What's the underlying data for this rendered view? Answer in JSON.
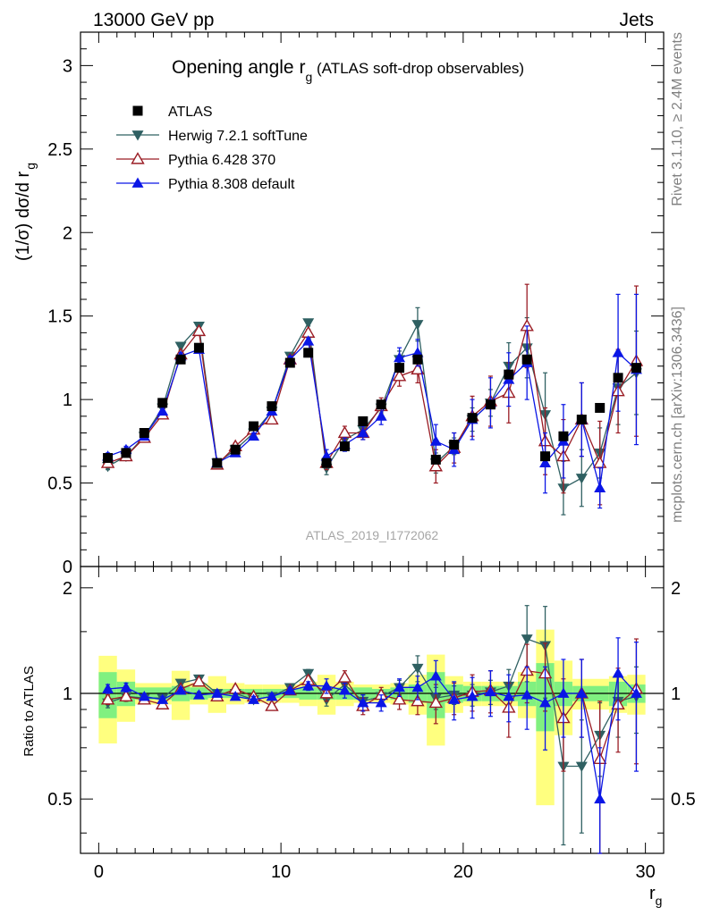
{
  "header": {
    "left": "13000 GeV pp",
    "right": "Jets"
  },
  "side": {
    "rivet": "Rivet 3.1.10, ≥ 2.4M events",
    "mcplots": "mcplots.cern.ch [arXiv:1306.3436]"
  },
  "chart_data": {
    "type": "scatter",
    "title_main": "Opening angle r",
    "title_sub": "g",
    "title_rest": " (ATLAS soft-drop observables)",
    "watermark": "ATLAS_2019_I1772062",
    "ylabel_main": "(1/σ) dσ/d r",
    "ylabel_sub": "g",
    "xlabel_main": "r",
    "xlabel_sub": "g",
    "ratio_ylabel": "Ratio to ATLAS",
    "xlim": [
      -1,
      31
    ],
    "ylim": [
      0,
      3.2
    ],
    "ratio_ylim": [
      0.35,
      2.3
    ],
    "main_yticks": [
      {
        "v": 0.5,
        "label": "0.5"
      },
      {
        "v": 1,
        "label": "1"
      },
      {
        "v": 1.5,
        "label": "1.5"
      },
      {
        "v": 2,
        "label": "2"
      },
      {
        "v": 2.5,
        "label": "2.5"
      },
      {
        "v": 3,
        "label": "3"
      }
    ],
    "main_zero_label": "0",
    "ratio_yticks": [
      {
        "v": 0.5,
        "label": "0.5"
      },
      {
        "v": 1,
        "label": "1"
      },
      {
        "v": 2,
        "label": "2"
      }
    ],
    "xticks": [
      {
        "v": 0,
        "label": "0"
      },
      {
        "v": 10,
        "label": "10"
      },
      {
        "v": 20,
        "label": "20"
      },
      {
        "v": 30,
        "label": "30"
      }
    ],
    "x": [
      0.5,
      1.5,
      2.5,
      3.5,
      4.5,
      5.5,
      6.5,
      7.5,
      8.5,
      9.5,
      10.5,
      11.5,
      12.5,
      13.5,
      14.5,
      15.5,
      16.5,
      17.5,
      18.5,
      19.5,
      20.5,
      21.5,
      22.5,
      23.5,
      24.5,
      25.5,
      26.5,
      27.5,
      28.5,
      29.5
    ],
    "ratio_band_inner": [
      0.15,
      0.08,
      0.04,
      0.04,
      0.05,
      0.04,
      0.03,
      0.03,
      0.03,
      0.03,
      0.03,
      0.04,
      0.04,
      0.04,
      0.04,
      0.03,
      0.04,
      0.06,
      0.15,
      0.06,
      0.05,
      0.05,
      0.05,
      0.08,
      0.22,
      0.08,
      0.05,
      0.05,
      0.08,
      0.06
    ],
    "ratio_band_outer": [
      0.28,
      0.17,
      0.07,
      0.07,
      0.16,
      0.07,
      0.12,
      0.07,
      0.06,
      0.06,
      0.06,
      0.08,
      0.13,
      0.08,
      0.06,
      0.06,
      0.07,
      0.13,
      0.29,
      0.12,
      0.08,
      0.08,
      0.08,
      0.15,
      0.52,
      0.24,
      0.1,
      0.1,
      0.12,
      0.13
    ],
    "series": [
      {
        "name": "ATLAS",
        "color": "#000000",
        "marker": "square",
        "values": [
          0.65,
          0.68,
          0.8,
          0.98,
          1.24,
          1.31,
          0.62,
          0.7,
          0.84,
          0.96,
          1.22,
          1.28,
          0.62,
          0.72,
          0.87,
          0.97,
          1.19,
          1.24,
          0.64,
          0.73,
          0.89,
          0.97,
          1.15,
          1.24,
          0.66,
          0.78,
          0.88,
          0.95,
          1.13,
          1.19
        ],
        "errors": [
          0.0,
          0.0,
          0.0,
          0.0,
          0.0,
          0.0,
          0.0,
          0.0,
          0.0,
          0.0,
          0.0,
          0.0,
          0.0,
          0.0,
          0.0,
          0.0,
          0.0,
          0.0,
          0.0,
          0.0,
          0.0,
          0.0,
          0.0,
          0.0,
          0.0,
          0.0,
          0.0,
          0.0,
          0.0,
          0.0
        ],
        "ratio": [
          1,
          1,
          1,
          1,
          1,
          1,
          1,
          1,
          1,
          1,
          1,
          1,
          1,
          1,
          1,
          1,
          1,
          1,
          1,
          1,
          1,
          1,
          1,
          1,
          1,
          1,
          1,
          1,
          1,
          1
        ],
        "ratio_err": [
          0,
          0,
          0,
          0,
          0,
          0,
          0,
          0,
          0,
          0,
          0,
          0,
          0,
          0,
          0,
          0,
          0,
          0,
          0,
          0,
          0,
          0,
          0,
          0,
          0,
          0,
          0,
          0,
          0,
          0
        ]
      },
      {
        "name": "Herwig 7.2.1 softTune",
        "color": "#2f6062",
        "marker": "triangle-down",
        "values": [
          0.6,
          0.66,
          0.78,
          0.95,
          1.32,
          1.44,
          0.62,
          0.7,
          0.8,
          0.93,
          1.26,
          1.46,
          0.59,
          0.76,
          0.82,
          0.95,
          1.24,
          1.45,
          0.62,
          0.72,
          0.88,
          0.98,
          1.2,
          1.31,
          0.91,
          0.47,
          0.53,
          0.68,
          1.07,
          1.16
        ],
        "errors": [
          0.02,
          0.02,
          0.02,
          0.02,
          0.02,
          0.02,
          0.02,
          0.02,
          0.02,
          0.02,
          0.02,
          0.02,
          0.04,
          0.03,
          0.03,
          0.03,
          0.05,
          0.1,
          0.06,
          0.05,
          0.07,
          0.08,
          0.14,
          0.18,
          0.25,
          0.16,
          0.17,
          0.15,
          0.22,
          0.25
        ],
        "ratio": [
          0.94,
          0.98,
          0.97,
          0.97,
          1.07,
          1.1,
          1.0,
          1.0,
          0.96,
          0.98,
          1.04,
          1.14,
          0.96,
          1.06,
          0.95,
          0.98,
          1.04,
          1.18,
          0.97,
          0.99,
          0.99,
          1.01,
          1.05,
          1.43,
          1.37,
          0.62,
          0.62,
          0.76,
          0.95,
          0.98
        ],
        "ratio_err": [
          0.03,
          0.03,
          0.02,
          0.02,
          0.02,
          0.02,
          0.02,
          0.02,
          0.02,
          0.02,
          0.02,
          0.03,
          0.04,
          0.04,
          0.04,
          0.04,
          0.05,
          0.1,
          0.07,
          0.06,
          0.07,
          0.08,
          0.12,
          0.35,
          0.4,
          0.25,
          0.22,
          0.18,
          0.2,
          0.21
        ]
      },
      {
        "name": "Pythia 6.428 370",
        "color": "#9a1c24",
        "marker": "triangle-up-open",
        "values": [
          0.62,
          0.66,
          0.77,
          0.91,
          1.27,
          1.41,
          0.61,
          0.72,
          0.82,
          0.88,
          1.24,
          1.4,
          0.62,
          0.8,
          0.8,
          0.96,
          1.14,
          1.18,
          0.6,
          0.71,
          0.9,
          0.99,
          1.04,
          1.44,
          0.75,
          0.66,
          0.88,
          0.62,
          1.05,
          1.23
        ],
        "errors": [
          0.02,
          0.02,
          0.02,
          0.02,
          0.02,
          0.02,
          0.02,
          0.02,
          0.02,
          0.02,
          0.02,
          0.02,
          0.04,
          0.04,
          0.04,
          0.05,
          0.06,
          0.08,
          0.1,
          0.09,
          0.12,
          0.15,
          0.18,
          0.25,
          0.2,
          0.22,
          0.22,
          0.25,
          0.25,
          0.45
        ],
        "ratio": [
          0.96,
          0.98,
          0.96,
          0.93,
          1.03,
          1.08,
          0.98,
          1.03,
          0.98,
          0.92,
          1.02,
          1.09,
          1.0,
          1.11,
          0.92,
          0.99,
          0.96,
          0.95,
          0.94,
          0.97,
          1.01,
          1.02,
          0.91,
          1.16,
          1.14,
          0.85,
          1.0,
          0.65,
          0.93,
          1.03
        ],
        "ratio_err": [
          0.03,
          0.03,
          0.02,
          0.02,
          0.02,
          0.02,
          0.02,
          0.02,
          0.02,
          0.02,
          0.02,
          0.03,
          0.05,
          0.05,
          0.05,
          0.05,
          0.06,
          0.08,
          0.12,
          0.1,
          0.12,
          0.14,
          0.16,
          0.22,
          0.25,
          0.25,
          0.25,
          0.3,
          0.25,
          0.4
        ]
      },
      {
        "name": "Pythia 8.308 default",
        "color": "#0a16e6",
        "marker": "triangle-up",
        "values": [
          0.66,
          0.7,
          0.78,
          0.93,
          1.26,
          1.3,
          0.62,
          0.68,
          0.78,
          0.93,
          1.24,
          1.35,
          0.66,
          0.73,
          0.8,
          0.9,
          1.25,
          1.28,
          0.75,
          0.7,
          0.88,
          0.98,
          1.12,
          1.22,
          0.62,
          0.75,
          0.88,
          0.47,
          1.28,
          1.18
        ],
        "errors": [
          0.02,
          0.02,
          0.02,
          0.02,
          0.02,
          0.02,
          0.02,
          0.02,
          0.02,
          0.02,
          0.02,
          0.02,
          0.04,
          0.04,
          0.04,
          0.05,
          0.06,
          0.08,
          0.1,
          0.1,
          0.12,
          0.15,
          0.16,
          0.22,
          0.18,
          0.22,
          0.22,
          0.12,
          0.35,
          0.45
        ],
        "ratio": [
          1.03,
          1.04,
          0.98,
          0.96,
          1.02,
          0.99,
          1.0,
          0.98,
          0.96,
          0.98,
          1.02,
          1.05,
          1.05,
          1.02,
          0.94,
          0.94,
          1.04,
          1.04,
          1.12,
          0.96,
          0.98,
          1.01,
          0.98,
          0.99,
          0.94,
          1.0,
          1.0,
          0.5,
          1.14,
          1.0
        ],
        "ratio_err": [
          0.03,
          0.03,
          0.02,
          0.02,
          0.02,
          0.02,
          0.02,
          0.02,
          0.02,
          0.02,
          0.02,
          0.03,
          0.05,
          0.05,
          0.05,
          0.05,
          0.06,
          0.08,
          0.12,
          0.12,
          0.13,
          0.15,
          0.15,
          0.2,
          0.25,
          0.25,
          0.25,
          0.2,
          0.3,
          0.4
        ]
      }
    ]
  }
}
